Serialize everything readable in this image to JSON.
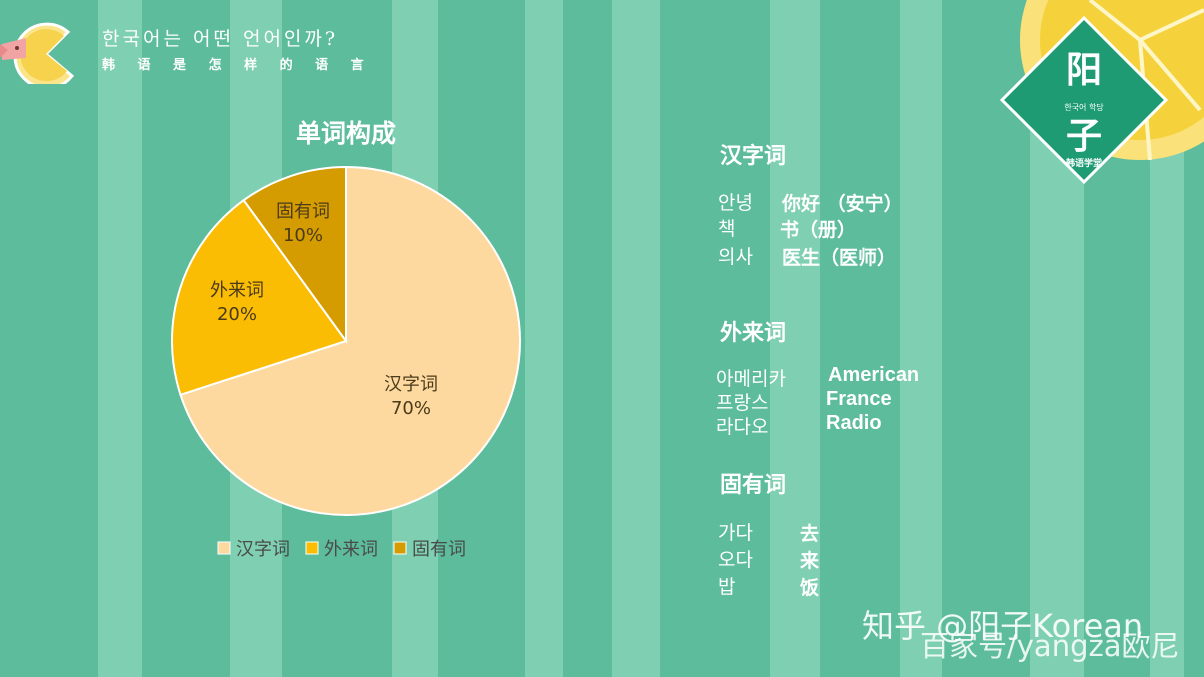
{
  "header": {
    "title_korean": "한국어는 어떤 언어인까?",
    "title_chinese": "韩 语 是 怎 样 的 语 言"
  },
  "brand": {
    "char_top": "阳",
    "char_bottom": "子",
    "tagline": "한국어 학당",
    "caption": "韩语学堂"
  },
  "chart_data": {
    "type": "pie",
    "title": "单词构成",
    "categories": [
      "汉字词",
      "外来词",
      "固有词"
    ],
    "values": [
      70,
      20,
      10
    ],
    "value_labels": [
      "70%",
      "20%",
      "10%"
    ],
    "colors": [
      "#fdd9a0",
      "#fbbd03",
      "#d49c00"
    ],
    "legend": "bottom"
  },
  "sections": [
    {
      "title": "汉字词",
      "rows": [
        {
          "korean": "안녕",
          "meaning": "你好 （安宁）"
        },
        {
          "korean": "책",
          "meaning": "书（册）"
        },
        {
          "korean": "의사",
          "meaning": "医生（医师）"
        }
      ]
    },
    {
      "title": "外来词",
      "rows": [
        {
          "korean": "아메리카",
          "meaning": "American"
        },
        {
          "korean": "프랑스",
          "meaning": "France"
        },
        {
          "korean": "라다오",
          "meaning": "Radio"
        }
      ]
    },
    {
      "title": "固有词",
      "rows": [
        {
          "korean": "가다",
          "meaning": "去"
        },
        {
          "korean": "오다",
          "meaning": "来"
        },
        {
          "korean": "밥",
          "meaning": "饭"
        }
      ]
    }
  ],
  "watermark": {
    "line1": "知乎 @阳子Korean",
    "line2": "百家号/yangza欧尼"
  }
}
